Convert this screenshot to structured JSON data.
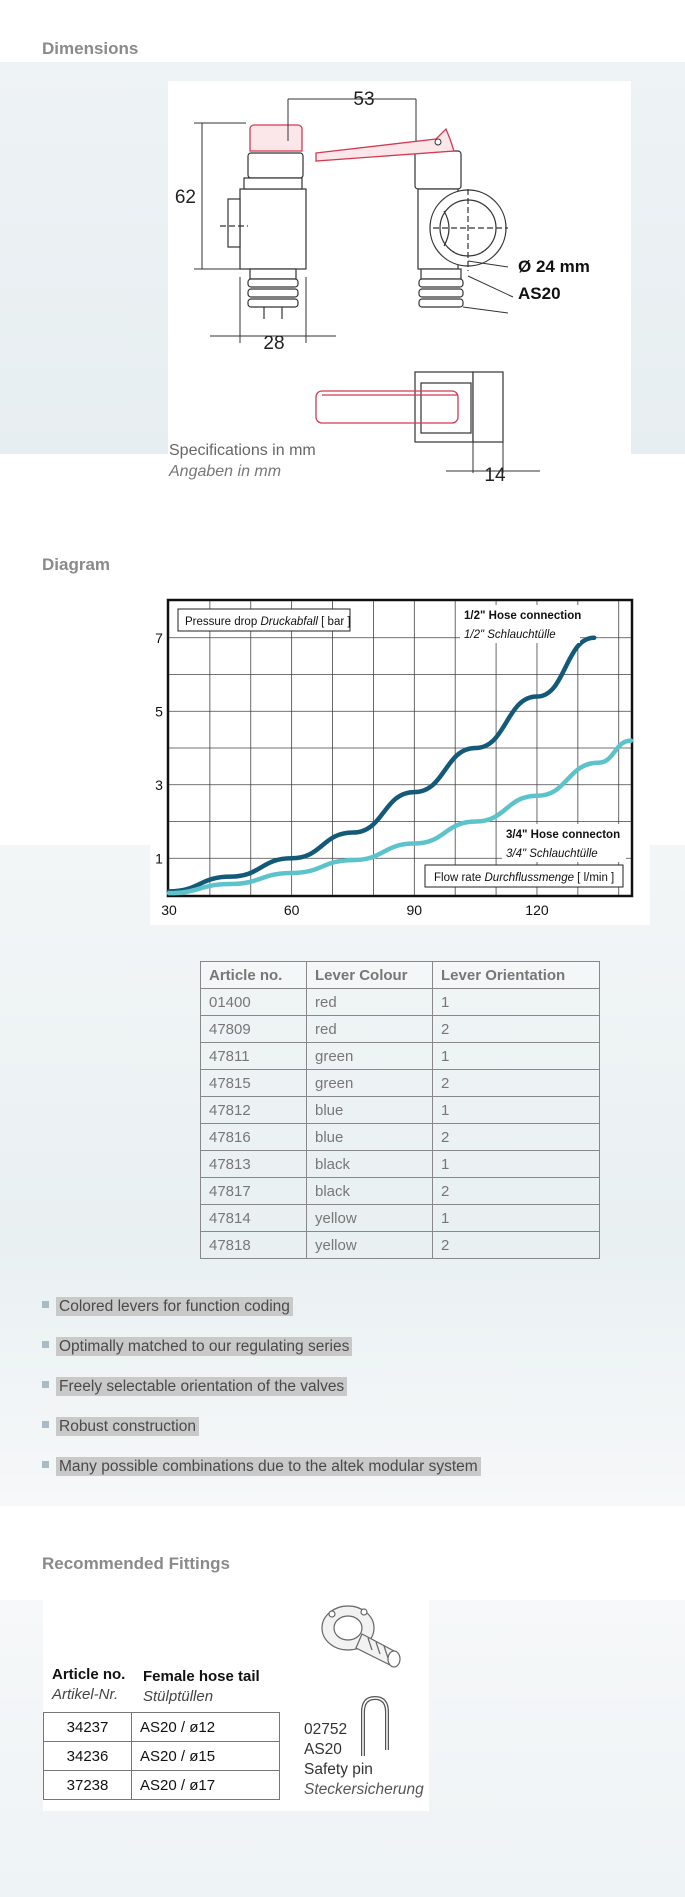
{
  "dimensions": {
    "title": "Dimensions",
    "dim_53": "53",
    "dim_62": "62",
    "dim_28": "28",
    "dim_14": "14",
    "diameter": "Ø 24 mm",
    "as20": "AS20",
    "spec_line1": "Specifications in mm",
    "spec_line2": "Angaben in mm"
  },
  "diagram": {
    "title": "Diagram",
    "colors": {
      "series1": "#125a78",
      "series2": "#5cc3cb"
    },
    "chart_data": {
      "type": "line",
      "ylabel_en": "Pressure drop ",
      "ylabel_de": "Druckabfall",
      "ylabel_unit": " [ bar ]",
      "xlabel_en": "Flow rate ",
      "xlabel_de": "Durchflussmenge",
      "xlabel_unit": " [ l/min ]",
      "xlim": [
        30,
        143
      ],
      "ylim": [
        0,
        8
      ],
      "xticks": [
        "30",
        "60",
        "90",
        "120"
      ],
      "yticks": [
        "1",
        "3",
        "5",
        "7"
      ],
      "grid": true,
      "series": [
        {
          "name": "1/2\" Hose connection",
          "name_de": "1/2\" Schlauchtülle",
          "x": [
            30,
            45,
            60,
            75,
            90,
            105,
            120,
            134
          ],
          "y": [
            0.1,
            0.5,
            1.0,
            1.7,
            2.8,
            4.0,
            5.4,
            7.0
          ]
        },
        {
          "name": "3/4\" Hose connecton",
          "name_de": "3/4\" Schlauchtülle",
          "x": [
            30,
            45,
            60,
            75,
            90,
            105,
            120,
            135,
            143
          ],
          "y": [
            0.05,
            0.3,
            0.6,
            0.95,
            1.4,
            2.0,
            2.7,
            3.6,
            4.2
          ]
        }
      ]
    }
  },
  "articles": {
    "headers": [
      "Article no.",
      "Lever Colour",
      "Lever Orientation"
    ],
    "rows": [
      [
        "01400",
        "red",
        "1"
      ],
      [
        "47809",
        "red",
        "2"
      ],
      [
        "47811",
        "green",
        "1"
      ],
      [
        "47815",
        "green",
        "2"
      ],
      [
        "47812",
        "blue",
        "1"
      ],
      [
        "47816",
        "blue",
        "2"
      ],
      [
        "47813",
        "black",
        "1"
      ],
      [
        "47817",
        "black",
        "2"
      ],
      [
        "47814",
        "yellow",
        "1"
      ],
      [
        "47818",
        "yellow",
        "2"
      ]
    ]
  },
  "features": [
    "Colored levers for function coding",
    "Optimally matched to our regulating series",
    "Freely selectable orientation of the valves",
    "Robust construction",
    "Many possible combinations due to the altek modular system"
  ],
  "fittings": {
    "title": "Recommended Fittings",
    "col1_en": "Article no.",
    "col1_de": "Artikel-Nr.",
    "col2_en": "Female hose tail",
    "col2_de": "Stülptüllen",
    "rows": [
      [
        "34237",
        "AS20 / ø12"
      ],
      [
        "34236",
        "AS20 / ø15"
      ],
      [
        "37238",
        "AS20 / ø17"
      ]
    ],
    "pin_number": "02752",
    "pin_type": "AS20",
    "pin_en": "Safety pin",
    "pin_de": "Steckersicherung"
  }
}
